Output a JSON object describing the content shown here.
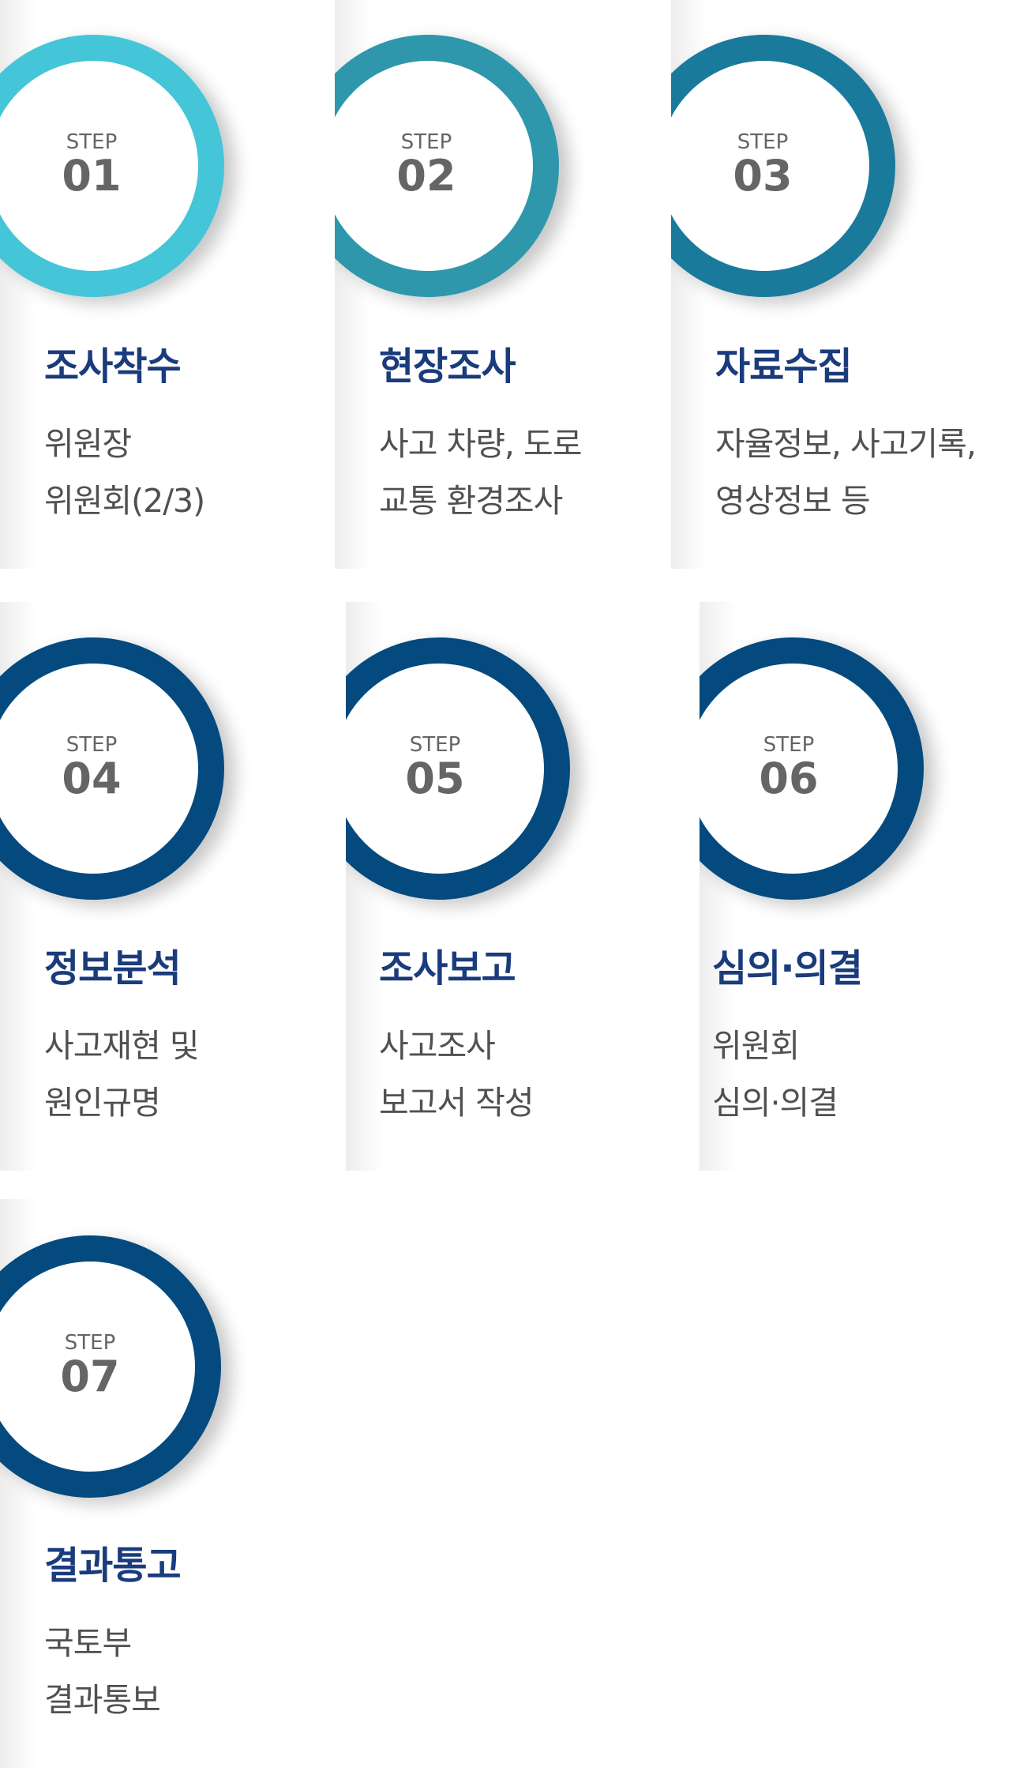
{
  "step_word": "STEP",
  "colors": {
    "ring_step01": "#44c5d8",
    "ring_step02": "#2e97ab",
    "ring_step03": "#197a9c",
    "ring_steps_04_07": "#044a7e",
    "title": "#1a3b7c",
    "desc": "#505050",
    "step_label": "#656565"
  },
  "steps": [
    {
      "number": "01",
      "title": "조사착수",
      "desc": [
        "위원장",
        "위원회(2/3)"
      ]
    },
    {
      "number": "02",
      "title": "현장조사",
      "desc": [
        "사고 차량, 도로",
        "교통 환경조사"
      ]
    },
    {
      "number": "03",
      "title": "자료수집",
      "desc": [
        "자율정보, 사고기록,",
        "영상정보 등"
      ]
    },
    {
      "number": "04",
      "title": "정보분석",
      "desc": [
        "사고재현 및",
        "원인규명"
      ]
    },
    {
      "number": "05",
      "title": "조사보고",
      "desc": [
        "사고조사",
        "보고서 작성"
      ]
    },
    {
      "number": "06",
      "title": "심의·의결",
      "desc": [
        "위원회",
        "심의·의결"
      ]
    },
    {
      "number": "07",
      "title": "결과통고",
      "desc": [
        "국토부",
        "결과통보"
      ]
    }
  ]
}
